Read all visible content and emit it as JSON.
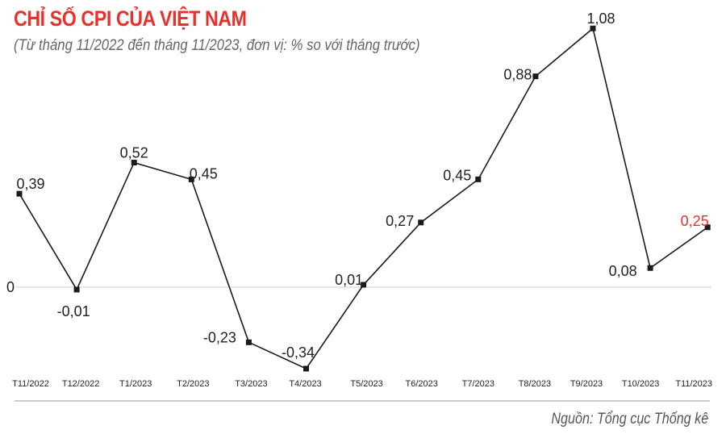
{
  "chart_data": {
    "type": "line",
    "title": "CHỈ SỐ CPI CỦA VIỆT NAM",
    "subtitle": "(Từ tháng 11/2022 đến tháng 11/2023, đơn vị: % so với tháng trước)",
    "source": "Nguồn: Tổng cục Thống kê",
    "categories": [
      "T11/2022",
      "T12/2022",
      "T1/2023",
      "T2/2023",
      "T3/2023",
      "T4/2023",
      "T5/2023",
      "T6/2023",
      "T7/2023",
      "T8/2023",
      "T9/2023",
      "T10/2023",
      "T11/2023"
    ],
    "values": [
      0.39,
      -0.01,
      0.52,
      0.45,
      -0.23,
      -0.34,
      0.01,
      0.27,
      0.45,
      0.88,
      1.08,
      0.08,
      0.25
    ],
    "value_labels": [
      "0,39",
      "-0,01",
      "0,52",
      "0,45",
      "-0,23",
      "-0,34",
      "0,01",
      "0,27",
      "0,45",
      "0,88",
      "1,08",
      "0,08",
      "0,25"
    ],
    "zero_label": "0",
    "ylim": [
      -0.34,
      1.08
    ],
    "grid": false,
    "line_color": "#1a1a1a",
    "highlight_color": "#e8302c",
    "zero_line_color": "#cccccc"
  }
}
